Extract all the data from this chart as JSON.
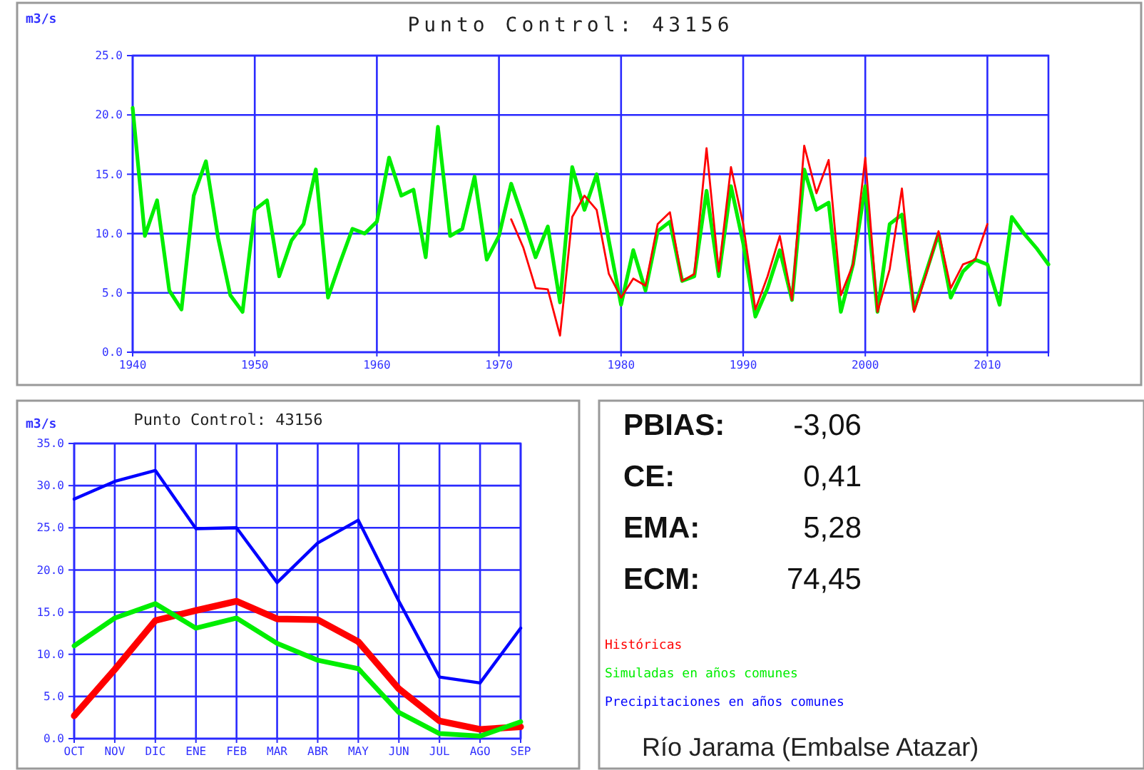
{
  "chart_data": [
    {
      "type": "line",
      "title": "Punto Control: 43156",
      "ylabel": "m3/s",
      "xlim": [
        1940,
        2015
      ],
      "ylim": [
        0,
        25
      ],
      "xticks": [
        1940,
        1950,
        1960,
        1970,
        1980,
        1990,
        2000,
        2010
      ],
      "yticks": [
        {
          "value": 0,
          "label": "0.0"
        },
        {
          "value": 5,
          "label": "5.0"
        },
        {
          "value": 10,
          "label": "10.0"
        },
        {
          "value": 15,
          "label": "15.0"
        },
        {
          "value": 20,
          "label": "20.0"
        },
        {
          "value": 25,
          "label": "25.0"
        }
      ],
      "grid": true,
      "series": [
        {
          "color": "#00ee00",
          "x": [
            1940,
            1941,
            1942,
            1943,
            1944,
            1945,
            1946,
            1947,
            1948,
            1949,
            1950,
            1951,
            1952,
            1953,
            1954,
            1955,
            1956,
            1957,
            1958,
            1959,
            1960,
            1961,
            1962,
            1963,
            1964,
            1965,
            1966,
            1967,
            1968,
            1969,
            1970,
            1971,
            1972,
            1973,
            1974,
            1975,
            1976,
            1977,
            1978,
            1979,
            1980,
            1981,
            1982,
            1983,
            1984,
            1985,
            1986,
            1987,
            1988,
            1989,
            1990,
            1991,
            1992,
            1993,
            1994,
            1995,
            1996,
            1997,
            1998,
            1999,
            2000,
            2001,
            2002,
            2003,
            2004,
            2005,
            2006,
            2007,
            2008,
            2009,
            2010,
            2011,
            2012,
            2013,
            2014,
            2015
          ],
          "values": [
            20.6,
            9.8,
            12.8,
            5.2,
            3.6,
            13.2,
            16.1,
            9.6,
            4.8,
            3.4,
            12.0,
            12.8,
            6.4,
            9.4,
            10.8,
            15.4,
            4.6,
            7.6,
            10.4,
            10.0,
            11.0,
            16.4,
            13.2,
            13.7,
            8.0,
            19.0,
            9.8,
            10.4,
            14.8,
            7.8,
            9.8,
            14.2,
            11.2,
            8.0,
            10.6,
            4.2,
            15.6,
            12.0,
            15.0,
            9.4,
            4.0,
            8.6,
            5.2,
            10.2,
            11.0,
            6.0,
            6.4,
            13.6,
            6.4,
            14.0,
            9.2,
            3.0,
            5.4,
            8.6,
            4.4,
            15.4,
            12.0,
            12.6,
            3.4,
            7.4,
            14.0,
            3.4,
            10.8,
            11.6,
            3.6,
            6.8,
            10.0,
            4.6,
            6.8,
            7.8,
            7.4,
            4.0,
            11.4,
            10.0,
            8.8,
            7.4
          ]
        },
        {
          "color": "#ff0000",
          "x": [
            1971,
            1972,
            1973,
            1974,
            1975,
            1976,
            1977,
            1978,
            1979,
            1980,
            1981,
            1982,
            1983,
            1984,
            1985,
            1986,
            1987,
            1988,
            1989,
            1990,
            1991,
            1992,
            1993,
            1994,
            1995,
            1996,
            1997,
            1998,
            1999,
            2000,
            2001,
            2002,
            2003,
            2004,
            2005,
            2006,
            2007,
            2008,
            2009,
            2010
          ],
          "values": [
            11.2,
            8.8,
            5.4,
            5.3,
            1.4,
            11.4,
            13.2,
            12.0,
            6.6,
            4.6,
            6.2,
            5.6,
            10.8,
            11.8,
            6.0,
            6.6,
            17.2,
            6.8,
            15.6,
            10.8,
            3.6,
            6.4,
            9.8,
            4.4,
            17.4,
            13.4,
            16.2,
            4.8,
            7.4,
            16.4,
            3.4,
            7.0,
            13.8,
            3.4,
            6.6,
            10.2,
            5.4,
            7.4,
            7.8,
            10.8
          ]
        }
      ]
    },
    {
      "type": "line",
      "title": "Punto Control: 43156",
      "ylabel": "m3/s",
      "categories": [
        "OCT",
        "NOV",
        "DIC",
        "ENE",
        "FEB",
        "MAR",
        "ABR",
        "MAY",
        "JUN",
        "JUL",
        "AGO",
        "SEP"
      ],
      "ylim": [
        0,
        35
      ],
      "yticks": [
        {
          "value": 0,
          "label": "0.0"
        },
        {
          "value": 5,
          "label": "5.0"
        },
        {
          "value": 10,
          "label": "10.0"
        },
        {
          "value": 15,
          "label": "15.0"
        },
        {
          "value": 20,
          "label": "20.0"
        },
        {
          "value": 25,
          "label": "25.0"
        },
        {
          "value": 30,
          "label": "30.0"
        },
        {
          "value": 35,
          "label": "35.0"
        }
      ],
      "grid": true,
      "legend": "right",
      "series": [
        {
          "name": "Históricas",
          "color": "#ff0000",
          "values": [
            2.7,
            8.2,
            14.0,
            15.2,
            16.3,
            14.2,
            14.1,
            11.5,
            5.9,
            2.1,
            1.1,
            1.4
          ]
        },
        {
          "name": "Simuladas en años comunes",
          "color": "#00ee00",
          "values": [
            11.0,
            14.3,
            16.0,
            13.1,
            14.3,
            11.3,
            9.3,
            8.3,
            3.1,
            0.6,
            0.3,
            2.0
          ]
        },
        {
          "name": "Precipitaciones en años comunes",
          "color": "#0000ff",
          "values": [
            28.4,
            30.5,
            31.8,
            24.9,
            25.0,
            18.5,
            23.2,
            25.9,
            16.3,
            7.3,
            6.6,
            13.1
          ]
        }
      ]
    },
    {
      "type": "other",
      "annotations": [
        "PBIAS: -3,06",
        "CE: 0,41",
        "EMA: 5,28",
        "ECM: 74,45",
        "Río Jarama (Embalse Atazar)"
      ]
    }
  ]
}
